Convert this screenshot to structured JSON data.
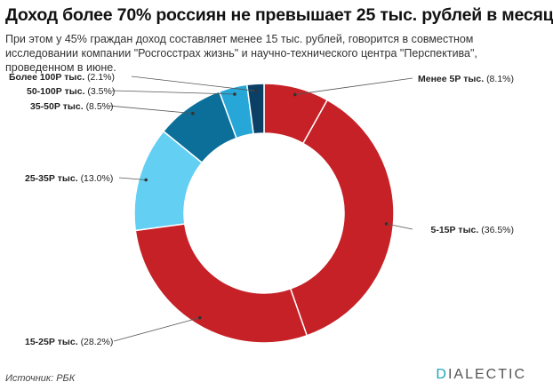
{
  "header": {
    "title": "Доход более 70% россиян не превышает 25 тыс. рублей в месяц",
    "subtitle": "При этом у 45% граждан доход составляет менее 15 тыс. рублей, говорится в совместном исследовании компании \"Росгосстрах жизнь\" и научно-технического центра \"Перспектива\", проведенном в июне."
  },
  "footer": {
    "source": "Источник: РБК",
    "brand_accent": "D",
    "brand_rest": "IALECTIC"
  },
  "chart_data": {
    "type": "pie",
    "variant": "donut",
    "title": "Доход более 70% россиян не превышает 25 тыс. рублей в месяц",
    "slices": [
      {
        "label": "Менее 5Р тыс.",
        "value_text": "(8.1%)",
        "value": 8.1,
        "color": "#c62127"
      },
      {
        "label": "5-15Р тыс.",
        "value_text": "(36.5%)",
        "value": 36.5,
        "color": "#c62127"
      },
      {
        "label": "15-25Р тыс.",
        "value_text": "(28.2%)",
        "value": 28.2,
        "color": "#c62127"
      },
      {
        "label": "25-35Р тыс.",
        "value_text": "(13.0%)",
        "value": 13.0,
        "color": "#62cff3"
      },
      {
        "label": "35-50Р тыс.",
        "value_text": "(8.5%)",
        "value": 8.5,
        "color": "#0b6f99"
      },
      {
        "label": "50-100Р тыс.",
        "value_text": "(3.5%)",
        "value": 3.5,
        "color": "#27a7d8"
      },
      {
        "label": "Более 100Р тыс.",
        "value_text": "(2.1%)",
        "value": 2.1,
        "color": "#0a3f66"
      }
    ]
  }
}
